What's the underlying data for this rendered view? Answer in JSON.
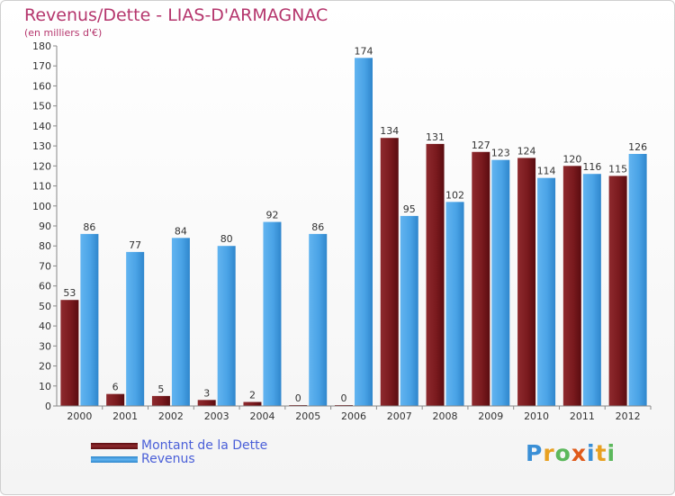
{
  "header": {
    "title": "Revenus/Dette - LIAS-D'ARMAGNAC",
    "subtitle": "(en milliers d'€)"
  },
  "colors": {
    "dette": "#7a1a1e",
    "revenus": "#4aa3e6",
    "title": "#b5366d",
    "legend_text": "#4a5fd8"
  },
  "chart_data": {
    "type": "bar",
    "categories": [
      "2000",
      "2001",
      "2002",
      "2003",
      "2004",
      "2005",
      "2006",
      "2007",
      "2008",
      "2009",
      "2010",
      "2011",
      "2012"
    ],
    "series": [
      {
        "name": "Montant de la Dette",
        "values": [
          53,
          6,
          5,
          3,
          2,
          0,
          0,
          134,
          131,
          127,
          124,
          120,
          115
        ]
      },
      {
        "name": "Revenus",
        "values": [
          86,
          77,
          84,
          80,
          92,
          86,
          174,
          95,
          102,
          123,
          114,
          116,
          126
        ]
      }
    ],
    "title": "Revenus/Dette - LIAS-D'ARMAGNAC",
    "ylabel": "(en milliers d'€)",
    "ylim": [
      0,
      180
    ],
    "yticks": [
      0,
      10,
      20,
      30,
      40,
      50,
      60,
      70,
      80,
      90,
      100,
      110,
      120,
      130,
      140,
      150,
      160,
      170,
      180
    ],
    "grid": false,
    "legend": "bottom-left"
  },
  "legend": {
    "items": [
      {
        "label": "Montant de la Dette"
      },
      {
        "label": "Revenus"
      }
    ]
  },
  "logo": {
    "letters": [
      "P",
      "r",
      "o",
      "x",
      "i",
      "t",
      "i"
    ],
    "colors": [
      "#3a8fd6",
      "#e8a020",
      "#5cb85c",
      "#e05a1a",
      "#3a8fd6",
      "#e8a020",
      "#5cb85c"
    ]
  }
}
